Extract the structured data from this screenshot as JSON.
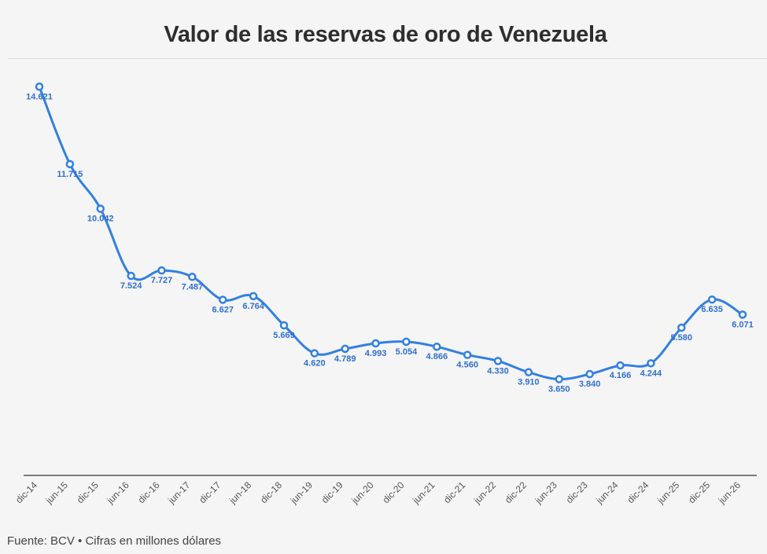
{
  "title": "Valor de las reservas de oro de Venezuela",
  "footer": "Fuente: BCV • Cifras en millones dólares",
  "colors": {
    "line": "#3380e0",
    "label": "#2f6fd0",
    "axis": "#555555",
    "title": "#2e2e2e"
  },
  "chart_data": {
    "type": "line",
    "title": "Valor de las reservas de oro de Venezuela",
    "categories": [
      "dic-14",
      "jun-15",
      "dic-15",
      "jun-16",
      "dic-16",
      "jun-17",
      "dic-17",
      "jun-18",
      "dic-18",
      "jun-19",
      "dic-19",
      "jun-20",
      "dic-20",
      "jun-21",
      "dic-21",
      "jun-22",
      "dic-22",
      "jun-23",
      "dic-23",
      "jun-24",
      "dic-24",
      "jun-25",
      "dic-25",
      "jun-26"
    ],
    "values": [
      14621,
      11715,
      10042,
      7524,
      7727,
      7487,
      6627,
      6764,
      5669,
      4620,
      4789,
      4993,
      5054,
      4866,
      4560,
      4330,
      3910,
      3650,
      3840,
      4166,
      4244,
      5580,
      6635,
      6071
    ],
    "data_labels": [
      "14.621",
      "11.715",
      "10.042",
      "7.524",
      "7.727",
      "7.487",
      "6.627",
      "6.764",
      "5.669",
      "4.620",
      "4.789",
      "4.993",
      "5.054",
      "4.866",
      "4.560",
      "4.330",
      "3.910",
      "3.650",
      "3.840",
      "4.166",
      "4.244",
      "5.580",
      "6.635",
      "6.071"
    ],
    "ylim": [
      0,
      15000
    ],
    "grid": false,
    "legend": "none",
    "xlabel": "",
    "ylabel": ""
  }
}
